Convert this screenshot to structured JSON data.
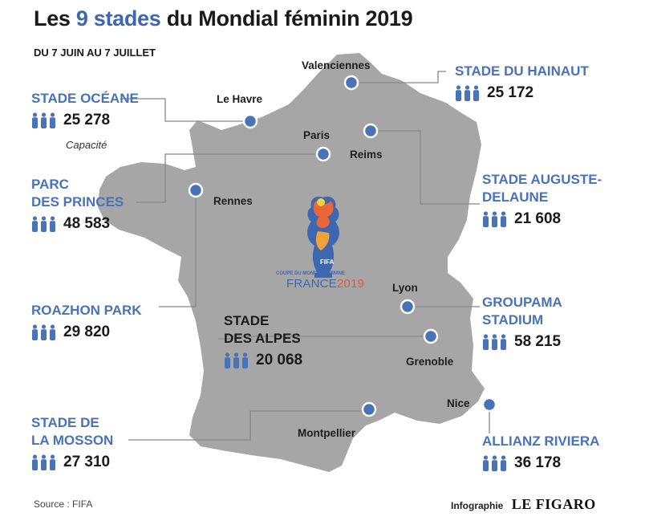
{
  "title": {
    "prefix": "Les",
    "highlight": "9 stades",
    "suffix": "du Mondial féminin 2019"
  },
  "subtitle": "DU 7 JUIN AU 7 JUILLET",
  "capacity_note": "Capacité",
  "stadiums": [
    {
      "name_lines": [
        "STADE OCÉANE"
      ],
      "capacity": "25 278",
      "city": "Le Havre"
    },
    {
      "name_lines": [
        "PARC",
        "DES PRINCES"
      ],
      "capacity": "48 583",
      "city": "Paris"
    },
    {
      "name_lines": [
        "ROAZHON PARK"
      ],
      "capacity": "29 820",
      "city": "Rennes"
    },
    {
      "name_lines": [
        "STADE DE",
        "LA MOSSON"
      ],
      "capacity": "27 310",
      "city": "Montpellier"
    },
    {
      "name_lines": [
        "STADE",
        "DES ALPES"
      ],
      "capacity": "20 068",
      "city": "Grenoble"
    },
    {
      "name_lines": [
        "STADE DU HAINAUT"
      ],
      "capacity": "25 172",
      "city": "Valenciennes"
    },
    {
      "name_lines": [
        "STADE AUGUSTE-",
        "DELAUNE"
      ],
      "capacity": "21 608",
      "city": "Reims"
    },
    {
      "name_lines": [
        "GROUPAMA",
        "STADIUM"
      ],
      "capacity": "58 215",
      "city": "Lyon"
    },
    {
      "name_lines": [
        "ALLIANZ RIVIERA"
      ],
      "capacity": "36 178",
      "city": "Nice"
    }
  ],
  "logo": {
    "fifa": "FIFA",
    "line1": "COUPE DU MONDE FÉMININE",
    "line2": "FRANCE",
    "year": "2019"
  },
  "source": "Source : FIFA",
  "credit": {
    "label": "Infographie",
    "brand": "LE FIGARO"
  },
  "colors": {
    "accent": "#3d68b0",
    "label": "#4a72b6",
    "map_fill": "#a6a6a6",
    "dot": "#4a72b6",
    "connector": "#888888"
  }
}
